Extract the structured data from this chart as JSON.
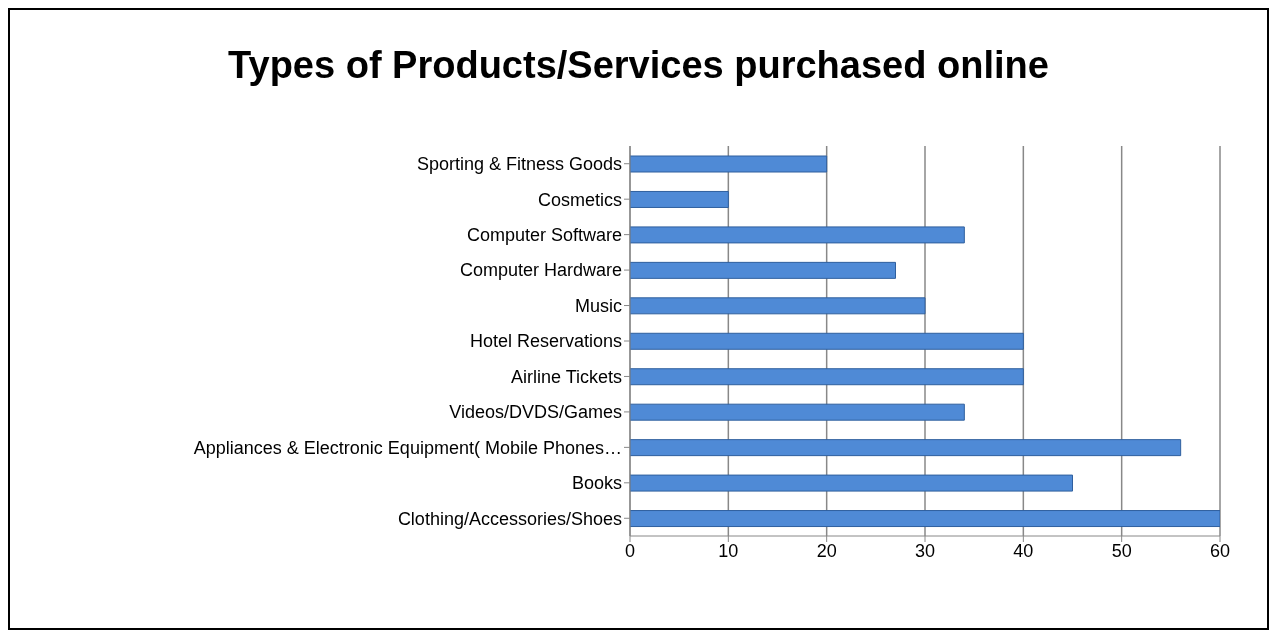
{
  "chart_data": {
    "type": "bar",
    "orientation": "horizontal",
    "title": "Types of Products/Services purchased online",
    "categories": [
      "Sporting & Fitness Goods",
      "Cosmetics",
      "Computer Software",
      "Computer Hardware",
      "Music",
      "Hotel Reservations",
      "Airline Tickets",
      "Videos/DVDS/Games",
      "Appliances & Electronic Equipment( Mobile Phones…",
      "Books",
      "Clothing/Accessories/Shoes"
    ],
    "values": [
      20,
      10,
      34,
      27,
      30,
      40,
      40,
      34,
      56,
      45,
      60
    ],
    "color": "#4f8ad6",
    "xlim": [
      0,
      60
    ],
    "xticks": [
      0,
      10,
      20,
      30,
      40,
      50,
      60
    ],
    "grid": "x"
  }
}
